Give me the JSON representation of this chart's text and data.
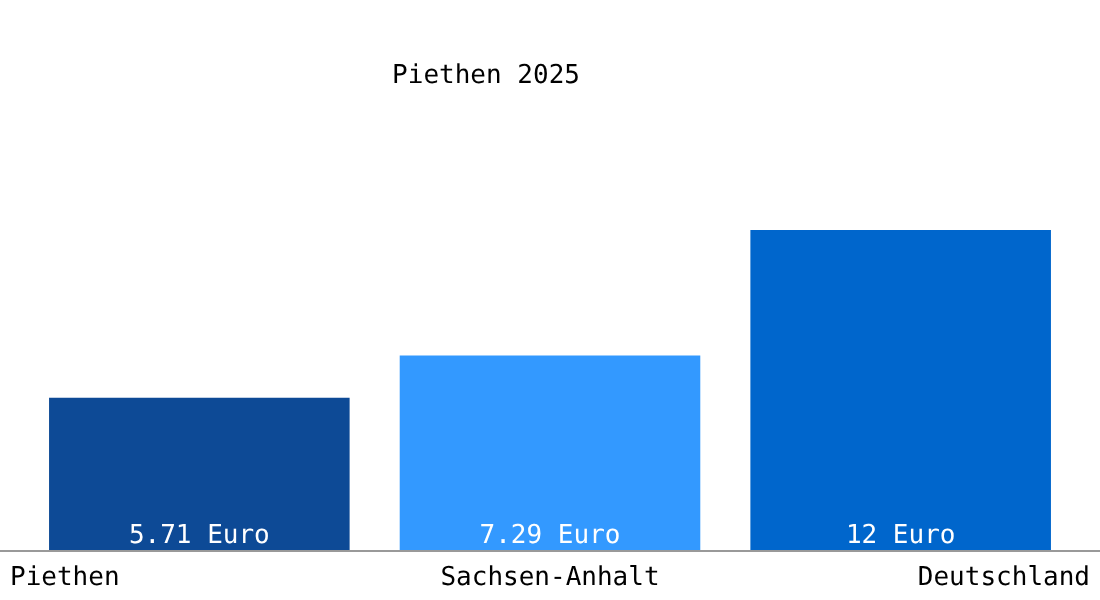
{
  "chart_data": {
    "type": "bar",
    "title": "Piethen 2025",
    "categories": [
      "Piethen",
      "Sachsen-Anhalt",
      "Deutschland"
    ],
    "values": [
      5.71,
      7.29,
      12
    ],
    "colors": [
      "#0d4a96",
      "#3399ff",
      "#0066cc"
    ],
    "value_labels": [
      "5.71 Euro",
      "7.29 Euro",
      "12 Euro"
    ],
    "tick_labels": "x"
  }
}
